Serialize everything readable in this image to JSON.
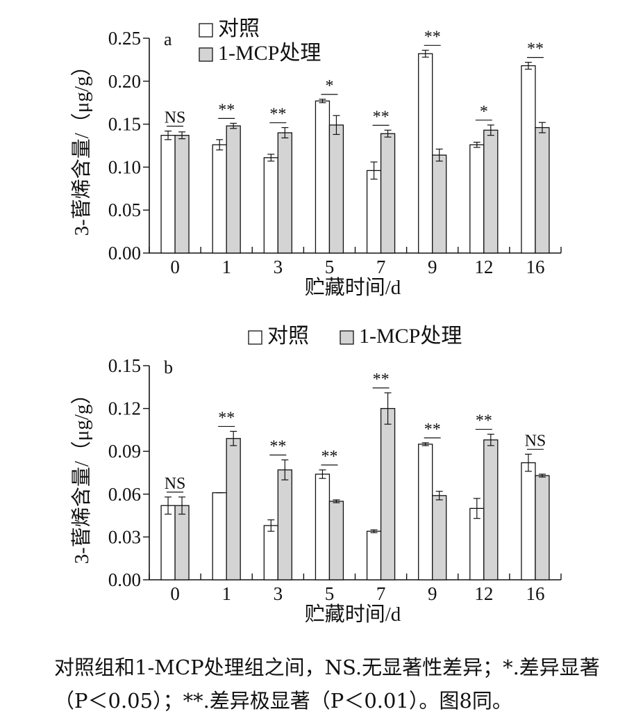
{
  "chart_data": [
    {
      "type": "bar",
      "panel_label": "a",
      "ylabel": "3-蒈烯含量/（μg/g）",
      "xlabel": "贮藏时间/d",
      "ylim": [
        0,
        0.25
      ],
      "yticks": [
        "0.00",
        "0.05",
        "0.10",
        "0.15",
        "0.20",
        "0.25"
      ],
      "categories": [
        "0",
        "1",
        "3",
        "5",
        "7",
        "9",
        "12",
        "16"
      ],
      "legend_position": "top-left",
      "series": [
        {
          "name": "对照",
          "color": "#ffffff",
          "values": [
            0.137,
            0.126,
            0.111,
            0.177,
            0.096,
            0.232,
            0.126,
            0.218
          ],
          "errors": [
            0.005,
            0.006,
            0.004,
            0.002,
            0.01,
            0.004,
            0.003,
            0.004
          ]
        },
        {
          "name": "1-MCP处理",
          "color": "#d4d4d4",
          "values": [
            0.137,
            0.148,
            0.14,
            0.149,
            0.139,
            0.114,
            0.143,
            0.146
          ],
          "errors": [
            0.004,
            0.003,
            0.006,
            0.011,
            0.004,
            0.007,
            0.006,
            0.006
          ]
        }
      ],
      "significance": [
        "NS",
        "**",
        "**",
        "*",
        "**",
        "**",
        "*",
        "**"
      ]
    },
    {
      "type": "bar",
      "panel_label": "b",
      "ylabel": "3-蒈烯含量/（μg/g）",
      "xlabel": "贮藏时间/d",
      "ylim": [
        0,
        0.15
      ],
      "yticks": [
        "0.00",
        "0.03",
        "0.06",
        "0.09",
        "0.12",
        "0.15"
      ],
      "categories": [
        "0",
        "1",
        "3",
        "5",
        "7",
        "9",
        "12",
        "16"
      ],
      "legend_position": "top-center",
      "series": [
        {
          "name": "对照",
          "color": "#ffffff",
          "values": [
            0.052,
            0.061,
            0.038,
            0.074,
            0.034,
            0.095,
            0.05,
            0.082
          ],
          "errors": [
            0.006,
            0.0,
            0.004,
            0.003,
            0.001,
            0.001,
            0.007,
            0.006
          ]
        },
        {
          "name": "1-MCP处理",
          "color": "#d4d4d4",
          "values": [
            0.052,
            0.099,
            0.077,
            0.055,
            0.12,
            0.059,
            0.098,
            0.073
          ],
          "errors": [
            0.006,
            0.005,
            0.007,
            0.001,
            0.011,
            0.003,
            0.004,
            0.001
          ]
        }
      ],
      "significance": [
        "NS",
        "**",
        "**",
        "**",
        "**",
        "**",
        "**",
        "NS"
      ]
    }
  ],
  "caption": "对照组和1-MCP处理组之间，NS.无显著性差异；*.差异显著（P＜0.05）；**.差异极显著（P＜0.01）。图8同。"
}
